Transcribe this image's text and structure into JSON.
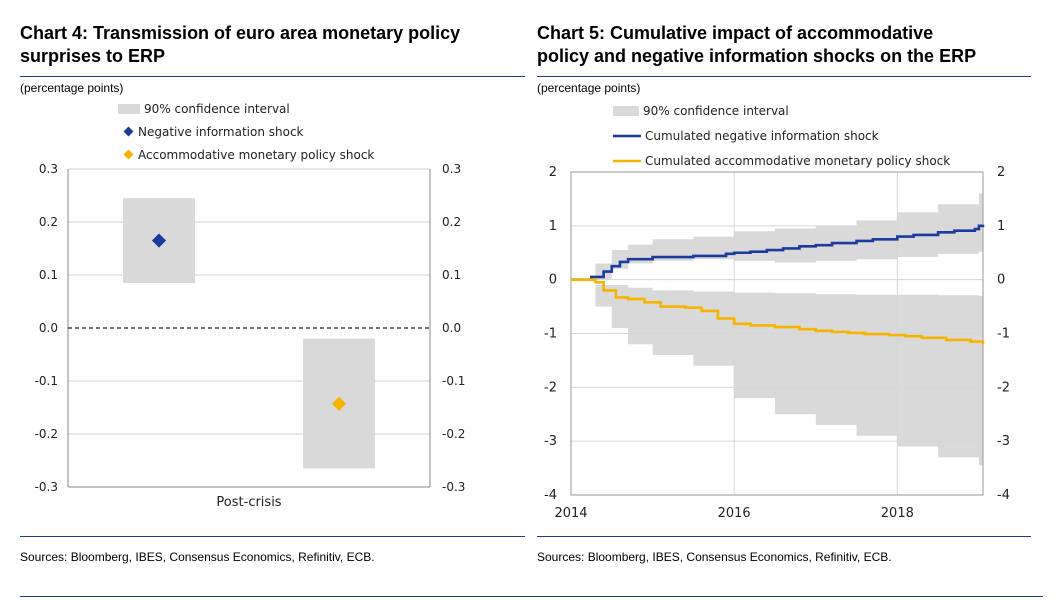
{
  "left": {
    "title_line1": "Chart 4: Transmission of euro area monetary policy",
    "title_line2": "surprises to ERP",
    "unit": "(percentage points)",
    "source": "Sources: Bloomberg, IBES, Consensus Economics, Refinitiv, ECB."
  },
  "right": {
    "title_line1": "Chart 5: Cumulative impact of accommodative",
    "title_line2": "policy and negative information shocks on the ERP",
    "unit": "(percentage points)",
    "source": "Sources: Bloomberg, IBES, Consensus Economics, Refinitiv, ECB."
  },
  "colors": {
    "navy": "#1a3a9c",
    "gold": "#f5b400",
    "band": "#d9d9d9",
    "rule": "#1f3b8c"
  },
  "chart_data": [
    {
      "type": "scatter",
      "title": "Chart 4: Transmission of euro area monetary policy surprises to ERP",
      "ylabel": "(percentage points)",
      "ylim": [
        -0.3,
        0.3
      ],
      "yticks": [
        "0.3",
        "0.2",
        "0.1",
        "0.0",
        "-0.1",
        "-0.2",
        "-0.3"
      ],
      "ytick_values": [
        0.3,
        0.2,
        0.1,
        0.0,
        -0.1,
        -0.2,
        -0.3
      ],
      "categories": [
        "Post-crisis"
      ],
      "legend": [
        "90% confidence interval",
        "Negative information shock",
        "Accommodative monetary policy shock"
      ],
      "series": [
        {
          "name": "Negative information shock",
          "value": 0.165,
          "ci": [
            0.085,
            0.245
          ]
        },
        {
          "name": "Accommodative monetary policy shock",
          "value": -0.143,
          "ci": [
            -0.265,
            -0.02
          ]
        }
      ]
    },
    {
      "type": "line",
      "title": "Chart 5: Cumulative impact of accommodative policy and negative information shocks on the ERP",
      "ylabel": "(percentage points)",
      "xlim": [
        2014,
        2019.05
      ],
      "ylim": [
        -4,
        2
      ],
      "xticks": [
        "2014",
        "2016",
        "2018"
      ],
      "xtick_values": [
        2014,
        2016,
        2018
      ],
      "yticks": [
        "2",
        "1",
        "0",
        "-1",
        "-2",
        "-3",
        "-4"
      ],
      "ytick_values": [
        2,
        1,
        0,
        -1,
        -2,
        -3,
        -4
      ],
      "legend": [
        "90% confidence interval",
        "Cumulated negative information shock",
        "Cumulated accommodative monetary policy shock"
      ],
      "series": [
        {
          "name": "Cumulated negative information shock",
          "x": [
            2014,
            2014.2,
            2014.25,
            2014.4,
            2014.5,
            2014.6,
            2014.7,
            2015,
            2015.5,
            2015.9,
            2016,
            2016.2,
            2016.4,
            2016.6,
            2016.8,
            2017,
            2017.2,
            2017.5,
            2017.7,
            2018,
            2018.2,
            2018.5,
            2018.7,
            2018.95,
            2019,
            2019.05
          ],
          "values": [
            0,
            0,
            0.05,
            0.15,
            0.25,
            0.33,
            0.38,
            0.42,
            0.44,
            0.48,
            0.5,
            0.52,
            0.55,
            0.58,
            0.62,
            0.64,
            0.68,
            0.72,
            0.75,
            0.8,
            0.83,
            0.88,
            0.91,
            0.94,
            1.0,
            1.02
          ]
        },
        {
          "name": "Cumulated accommodative monetary policy shock",
          "x": [
            2014,
            2014.3,
            2014.4,
            2014.55,
            2014.7,
            2014.9,
            2015.1,
            2015.4,
            2015.6,
            2015.8,
            2016,
            2016.2,
            2016.5,
            2016.8,
            2017,
            2017.2,
            2017.4,
            2017.6,
            2017.9,
            2018.1,
            2018.3,
            2018.6,
            2018.9,
            2019.05
          ],
          "values": [
            0,
            -0.05,
            -0.2,
            -0.33,
            -0.36,
            -0.42,
            -0.5,
            -0.52,
            -0.58,
            -0.72,
            -0.82,
            -0.85,
            -0.88,
            -0.92,
            -0.95,
            -0.97,
            -0.99,
            -1.01,
            -1.03,
            -1.05,
            -1.08,
            -1.12,
            -1.15,
            -1.2
          ]
        }
      ],
      "confidence_band": {
        "name": "90% confidence interval",
        "x": [
          2014,
          2014.3,
          2014.5,
          2014.7,
          2015,
          2015.5,
          2016,
          2016.5,
          2017,
          2017.5,
          2018,
          2018.5,
          2019,
          2019.05
        ],
        "upper": [
          0,
          0.3,
          0.55,
          0.65,
          0.75,
          0.8,
          0.9,
          0.95,
          1.0,
          1.1,
          1.25,
          1.4,
          1.6,
          1.7
        ],
        "lower": [
          0,
          -0.5,
          -0.9,
          -1.2,
          -1.4,
          -1.6,
          -2.2,
          -2.5,
          -2.7,
          -2.9,
          -3.1,
          -3.3,
          -3.45,
          -3.5
        ],
        "upper2": [
          0,
          0.0,
          0.2,
          0.3,
          0.35,
          0.38,
          0.35,
          0.32,
          0.35,
          0.38,
          0.42,
          0.48,
          0.52,
          0.55
        ],
        "lower2": [
          0,
          -0.1,
          -0.1,
          -0.15,
          -0.2,
          -0.22,
          -0.24,
          -0.25,
          -0.27,
          -0.28,
          -0.28,
          -0.29,
          -0.3,
          -0.3
        ]
      }
    }
  ]
}
